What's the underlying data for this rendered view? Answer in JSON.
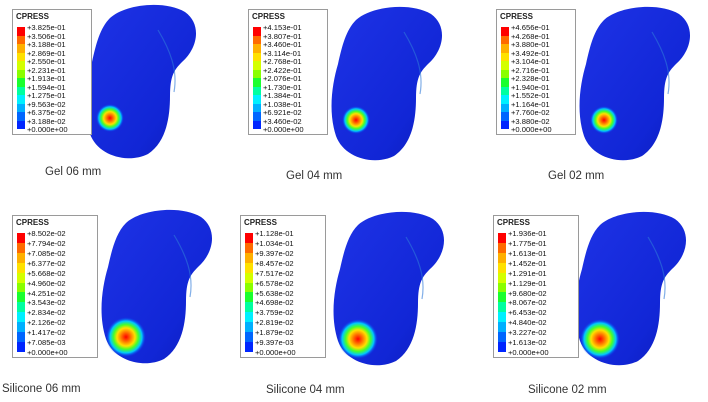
{
  "legend_colors": [
    "#ff0000",
    "#ff6a00",
    "#ffb000",
    "#ffe100",
    "#d4ff00",
    "#8aff00",
    "#1aff2e",
    "#00ffa0",
    "#00f0ff",
    "#00b0ff",
    "#0066ff",
    "#0026ff"
  ],
  "panels": [
    {
      "legend_title": "CPRESS",
      "ticks": [
        "+3.825e-01",
        "+3.506e-01",
        "+3.188e-01",
        "+2.869e-01",
        "+2.550e-01",
        "+2.231e-01",
        "+1.913e-01",
        "+1.594e-01",
        "+1.275e-01",
        "+9.563e-02",
        "+6.375e-02",
        "+3.188e-02",
        "+0.000e+00"
      ],
      "caption": "Gel 06 mm"
    },
    {
      "legend_title": "CPRESS",
      "ticks": [
        "+4.153e-01",
        "+3.807e-01",
        "+3.460e-01",
        "+3.114e-01",
        "+2.768e-01",
        "+2.422e-01",
        "+2.076e-01",
        "+1.730e-01",
        "+1.384e-01",
        "+1.038e-01",
        "+6.921e-02",
        "+3.460e-02",
        "+0.000e+00"
      ],
      "caption": "Gel 04 mm"
    },
    {
      "legend_title": "CPRESS",
      "ticks": [
        "+4.656e-01",
        "+4.268e-01",
        "+3.880e-01",
        "+3.492e-01",
        "+3.104e-01",
        "+2.716e-01",
        "+2.328e-01",
        "+1.940e-01",
        "+1.552e-01",
        "+1.164e-01",
        "+7.760e-02",
        "+3.880e-02",
        "+0.000e+00"
      ],
      "caption": "Gel 02 mm"
    },
    {
      "legend_title": "CPRESS",
      "ticks": [
        "+8.502e-02",
        "+7.794e-02",
        "+7.085e-02",
        "+6.377e-02",
        "+5.668e-02",
        "+4.960e-02",
        "+4.251e-02",
        "+3.543e-02",
        "+2.834e-02",
        "+2.126e-02",
        "+1.417e-02",
        "+7.085e-03",
        "+0.000e+00"
      ],
      "caption": "Silicone  06 mm"
    },
    {
      "legend_title": "CPRESS",
      "ticks": [
        "+1.128e-01",
        "+1.034e-01",
        "+9.397e-02",
        "+8.457e-02",
        "+7.517e-02",
        "+6.578e-02",
        "+5.638e-02",
        "+4.698e-02",
        "+3.759e-02",
        "+2.819e-02",
        "+1.879e-02",
        "+9.397e-03",
        "+0.000e+00"
      ],
      "caption": "Silicone  04 mm"
    },
    {
      "legend_title": "CPRESS",
      "ticks": [
        "+1.936e-01",
        "+1.775e-01",
        "+1.613e-01",
        "+1.452e-01",
        "+1.291e-01",
        "+1.129e-01",
        "+9.680e-02",
        "+8.067e-02",
        "+6.453e-02",
        "+4.840e-02",
        "+3.227e-02",
        "+1.613e-02",
        "+0.000e+00"
      ],
      "caption": "Silicone  02 mm"
    }
  ]
}
